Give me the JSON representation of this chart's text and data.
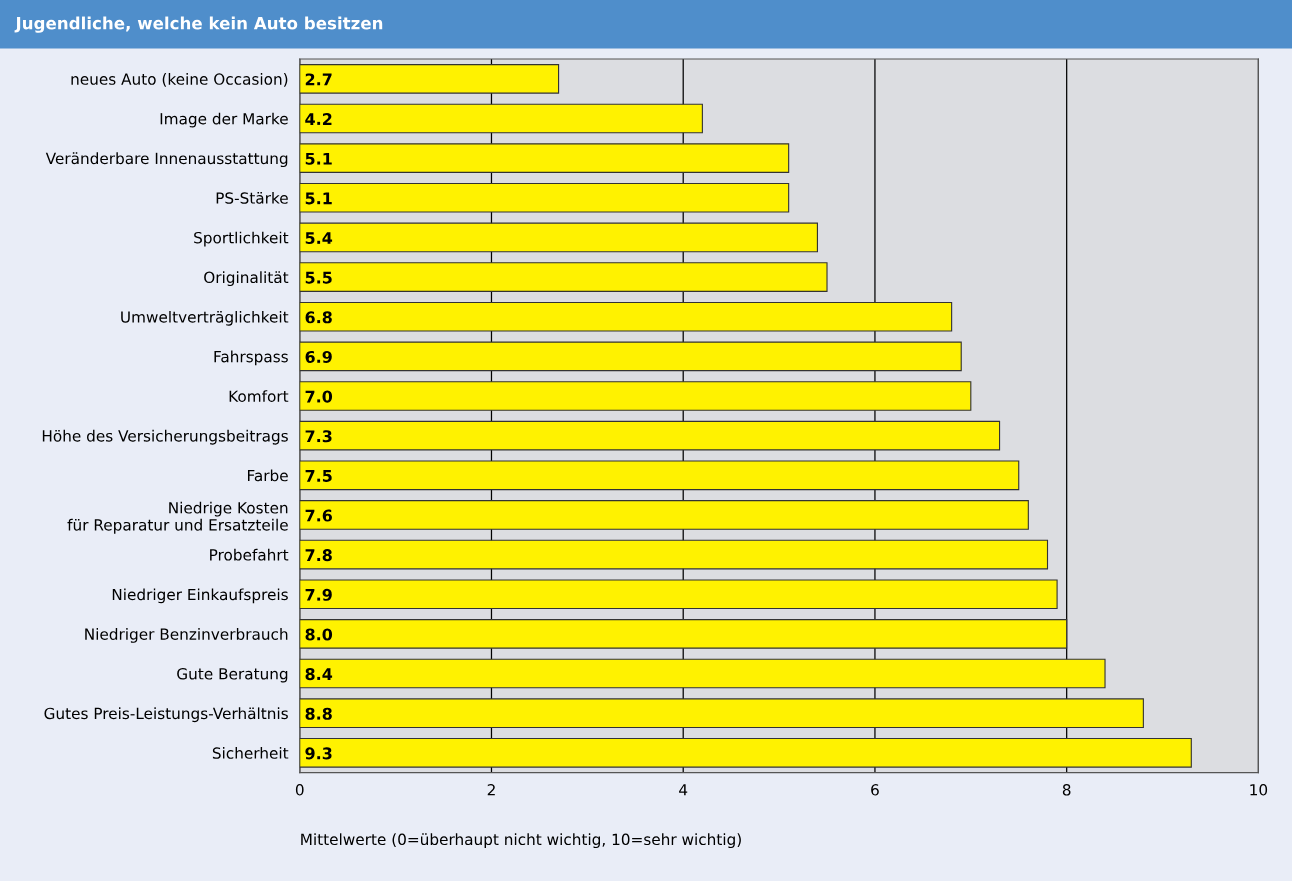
{
  "chart_data": {
    "type": "bar",
    "orientation": "horizontal",
    "title": "Jugendliche, welche kein Auto besitzen",
    "xlabel": "Mittelwerte (0=überhaupt nicht wichtig, 10=sehr wichtig)",
    "categories": [
      "neues Auto (keine Occasion)",
      "Image der Marke",
      "Veränderbare Innenausstattung",
      "PS-Stärke",
      "Sportlichkeit",
      "Originalität",
      "Umweltverträglichkeit",
      "Fahrspass",
      "Komfort",
      "Höhe des Versicherungsbeitrags",
      "Farbe",
      "Niedrige Kosten\nfür Reparatur und Ersatzteile",
      "Probefahrt",
      "Niedriger Einkaufspreis",
      "Niedriger Benzinverbrauch",
      "Gute Beratung",
      "Gutes Preis-Leistungs-Verhältnis",
      "Sicherheit"
    ],
    "values": [
      2.7,
      4.2,
      5.1,
      5.1,
      5.4,
      5.5,
      6.8,
      6.9,
      7.0,
      7.3,
      7.5,
      7.6,
      7.8,
      7.9,
      8.0,
      8.4,
      8.8,
      9.3
    ],
    "value_labels": [
      "2.7",
      "4.2",
      "5.1",
      "5.1",
      "5.4",
      "5.5",
      "6.8",
      "6.9",
      "7.0",
      "7.3",
      "7.5",
      "7.6",
      "7.8",
      "7.9",
      "8.0",
      "8.4",
      "8.8",
      "9.3"
    ],
    "color": "#fff200",
    "xlim": [
      0,
      10
    ],
    "xticks": [
      0,
      2,
      4,
      6,
      8,
      10
    ],
    "grid": "x"
  }
}
